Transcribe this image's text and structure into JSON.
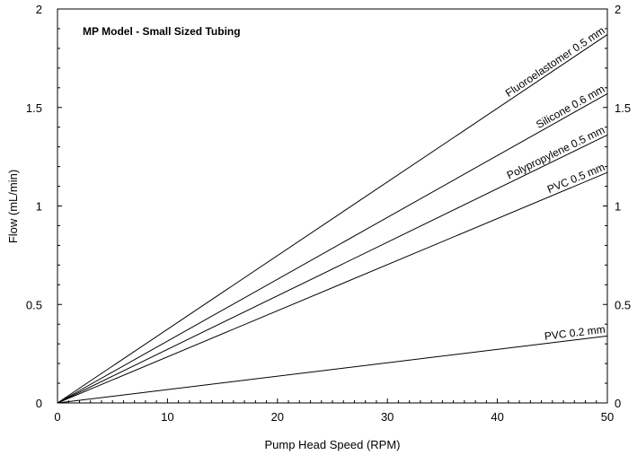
{
  "chart_data": {
    "type": "line",
    "title": "MP Model - Small Sized Tubing",
    "xlabel": "Pump Head Speed (RPM)",
    "ylabel": "Flow (mL/min)",
    "xlim": [
      0,
      50
    ],
    "ylim": [
      0,
      2
    ],
    "x_ticks": [
      "0",
      "10",
      "20",
      "30",
      "40",
      "50"
    ],
    "y_ticks": [
      "0",
      "0.5",
      "1",
      "1.5",
      "2"
    ],
    "y_ticks_right": [
      "0",
      "0.5",
      "1",
      "1.5",
      "2"
    ],
    "grid": false,
    "series": [
      {
        "name": "Fluoroelastomer 0.5 mm",
        "x": [
          0,
          50
        ],
        "y": [
          0,
          1.87
        ]
      },
      {
        "name": "Silicone 0.6 mm",
        "x": [
          0,
          50
        ],
        "y": [
          0,
          1.57
        ]
      },
      {
        "name": "Polypropylene 0.5 mm",
        "x": [
          0,
          50
        ],
        "y": [
          0,
          1.36
        ]
      },
      {
        "name": "PVC 0.5 mm",
        "x": [
          0,
          50
        ],
        "y": [
          0,
          1.17
        ]
      },
      {
        "name": "PVC 0.2 mm",
        "x": [
          0,
          50
        ],
        "y": [
          0,
          0.34
        ]
      }
    ]
  }
}
